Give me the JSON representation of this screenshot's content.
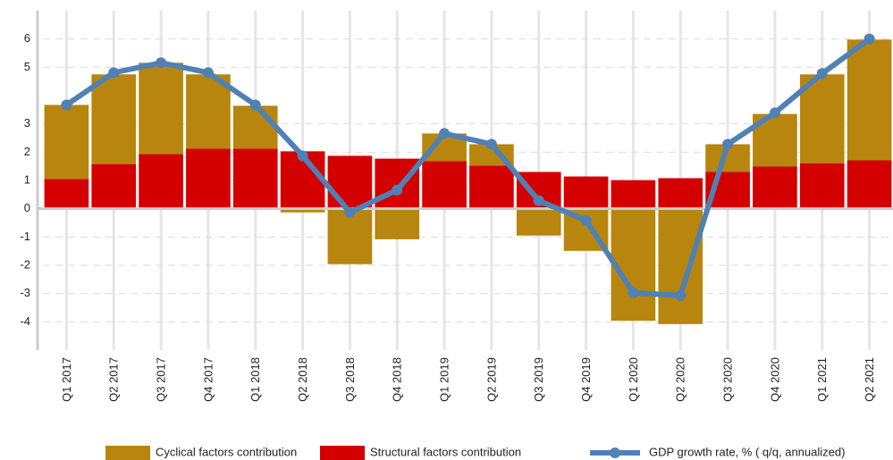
{
  "chart_data": {
    "type": "stacked-bar-line",
    "categories": [
      "Q1 2017",
      "Q2 2017",
      "Q3 2017",
      "Q4 2017",
      "Q1 2018",
      "Q2 2018",
      "Q3 2018",
      "Q4 2018",
      "Q1 2019",
      "Q2 2019",
      "Q3 2019",
      "Q4 2019",
      "Q1 2020",
      "Q2 2020",
      "Q3 2020",
      "Q4 2020",
      "Q1 2021",
      "Q2 2021"
    ],
    "series": [
      {
        "name": "Cyclical factors contribution",
        "color": "#b8860e",
        "kind": "bar",
        "values": [
          2.62,
          3.17,
          3.23,
          2.63,
          1.52,
          -0.13,
          -1.96,
          -1.08,
          0.98,
          0.76,
          -0.95,
          -1.49,
          -3.96,
          -4.08,
          0.98,
          1.86,
          3.14,
          4.27
        ]
      },
      {
        "name": "Structural factors contribution",
        "color": "#d40000",
        "kind": "bar",
        "values": [
          1.05,
          1.58,
          1.93,
          2.12,
          2.12,
          2.03,
          1.87,
          1.77,
          1.68,
          1.52,
          1.3,
          1.14,
          1.01,
          1.08,
          1.3,
          1.49,
          1.61,
          1.71
        ]
      },
      {
        "name": "GDP growth rate, % ( q/q, annualized)",
        "color": "#4f81b4",
        "kind": "line",
        "values": [
          3.67,
          4.81,
          5.16,
          4.81,
          3.67,
          1.87,
          -0.13,
          0.66,
          2.66,
          2.28,
          0.28,
          -0.41,
          -2.97,
          -3.07,
          2.28,
          3.39,
          4.78,
          6.0
        ]
      }
    ],
    "ylim": [
      -5,
      7
    ],
    "yticks": [
      6,
      5,
      3,
      2,
      1,
      0,
      -1,
      -2,
      -3,
      -4
    ],
    "grid": true
  }
}
